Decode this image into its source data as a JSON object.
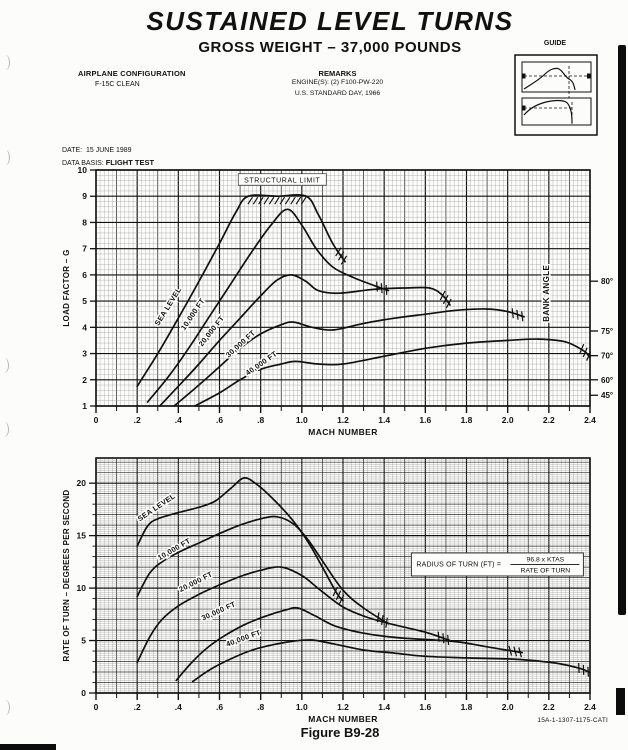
{
  "page": {
    "title": "SUSTAINED LEVEL TURNS",
    "subtitle": "GROSS WEIGHT – 37,000 POUNDS",
    "guide": {
      "label": "GUIDE"
    },
    "airplane_configuration": {
      "heading": "AIRPLANE CONFIGURATION",
      "value": "F-15C CLEAN"
    },
    "remarks": {
      "heading": "REMARKS",
      "lines": [
        "ENGINE(S): (2) F100-PW-220",
        "U.S. STANDARD DAY, 1966"
      ]
    },
    "date": {
      "label": "DATE:",
      "value": "15 JUNE 1989"
    },
    "data_basis": {
      "label": "DATA BASIS:",
      "value": "FLIGHT TEST"
    },
    "figure_caption": "Figure B9-28",
    "doc_number": "15A-1-1307-1175-CATI",
    "colors": {
      "ink": "#111111",
      "paper": "#fcfcfa"
    }
  },
  "chart_data": [
    {
      "type": "line",
      "name": "load-factor-chart",
      "xlabel": "MACH NUMBER",
      "ylabel": "LOAD FACTOR – G",
      "xlim": [
        0,
        2.4
      ],
      "ylim": [
        1,
        10
      ],
      "x_tick_labels": [
        "0",
        ".2",
        ".4",
        ".6",
        ".8",
        "1.0",
        "1.2",
        "1.4",
        "1.6",
        "1.8",
        "2.0",
        "2.2",
        "2.4"
      ],
      "y_tick_values": [
        1,
        2,
        3,
        4,
        5,
        6,
        7,
        8,
        9,
        10
      ],
      "grid": "on",
      "right_axis": {
        "label": "BANK ANGLE",
        "ticks": [
          {
            "label": "80°",
            "load_factor": 5.76
          },
          {
            "label": "75°",
            "load_factor": 3.86
          },
          {
            "label": "70°",
            "load_factor": 2.92
          },
          {
            "label": "60°",
            "load_factor": 2.0
          },
          {
            "label": "45°",
            "load_factor": 1.41
          }
        ]
      },
      "structural_limit": {
        "label": "STRUCTURAL LIMIT",
        "load_factor": 9,
        "mach_start": 0.76,
        "mach_end": 1.02
      },
      "series": [
        {
          "name": "SEA LEVEL",
          "label": {
            "mach": 0.36,
            "value": 4.75,
            "angle": -58
          },
          "points": [
            [
              0.2,
              1.75
            ],
            [
              0.3,
              3.0
            ],
            [
              0.4,
              4.35
            ],
            [
              0.5,
              5.75
            ],
            [
              0.6,
              7.2
            ],
            [
              0.68,
              8.4
            ],
            [
              0.74,
              9.0
            ],
            [
              0.88,
              9.0
            ],
            [
              1.02,
              9.0
            ],
            [
              1.08,
              8.3
            ],
            [
              1.15,
              7.2
            ],
            [
              1.21,
              6.5
            ]
          ]
        },
        {
          "name": "10,000 FT",
          "label": {
            "mach": 0.48,
            "value": 4.45,
            "angle": -56
          },
          "points": [
            [
              0.25,
              1.15
            ],
            [
              0.35,
              2.1
            ],
            [
              0.45,
              3.2
            ],
            [
              0.55,
              4.4
            ],
            [
              0.65,
              5.6
            ],
            [
              0.75,
              6.8
            ],
            [
              0.85,
              7.9
            ],
            [
              0.93,
              8.5
            ],
            [
              1.0,
              7.9
            ],
            [
              1.07,
              7.0
            ],
            [
              1.15,
              6.3
            ],
            [
              1.25,
              5.9
            ],
            [
              1.35,
              5.6
            ],
            [
              1.42,
              5.4
            ]
          ]
        },
        {
          "name": "20,000 FT",
          "label": {
            "mach": 0.57,
            "value": 3.8,
            "angle": -52
          },
          "points": [
            [
              0.31,
              1.0
            ],
            [
              0.4,
              1.75
            ],
            [
              0.5,
              2.6
            ],
            [
              0.6,
              3.5
            ],
            [
              0.7,
              4.35
            ],
            [
              0.8,
              5.2
            ],
            [
              0.88,
              5.8
            ],
            [
              0.95,
              6.0
            ],
            [
              1.02,
              5.75
            ],
            [
              1.08,
              5.4
            ],
            [
              1.18,
              5.3
            ],
            [
              1.35,
              5.45
            ],
            [
              1.5,
              5.5
            ],
            [
              1.62,
              5.5
            ],
            [
              1.68,
              5.25
            ],
            [
              1.72,
              4.85
            ]
          ]
        },
        {
          "name": "30,000 FT",
          "label": {
            "mach": 0.71,
            "value": 3.3,
            "angle": -42
          },
          "points": [
            [
              0.38,
              1.0
            ],
            [
              0.5,
              1.8
            ],
            [
              0.6,
              2.5
            ],
            [
              0.7,
              3.2
            ],
            [
              0.8,
              3.75
            ],
            [
              0.9,
              4.1
            ],
            [
              0.96,
              4.2
            ],
            [
              1.05,
              4.0
            ],
            [
              1.15,
              3.9
            ],
            [
              1.3,
              4.15
            ],
            [
              1.45,
              4.35
            ],
            [
              1.6,
              4.5
            ],
            [
              1.75,
              4.65
            ],
            [
              1.9,
              4.7
            ],
            [
              2.0,
              4.6
            ],
            [
              2.08,
              4.4
            ]
          ]
        },
        {
          "name": "40,000 FT",
          "label": {
            "mach": 0.81,
            "value": 2.55,
            "angle": -35
          },
          "points": [
            [
              0.48,
              1.0
            ],
            [
              0.6,
              1.5
            ],
            [
              0.7,
              2.0
            ],
            [
              0.8,
              2.4
            ],
            [
              0.9,
              2.6
            ],
            [
              0.97,
              2.7
            ],
            [
              1.08,
              2.6
            ],
            [
              1.2,
              2.6
            ],
            [
              1.4,
              2.9
            ],
            [
              1.6,
              3.2
            ],
            [
              1.8,
              3.4
            ],
            [
              2.0,
              3.5
            ],
            [
              2.15,
              3.55
            ],
            [
              2.28,
              3.45
            ],
            [
              2.37,
              3.1
            ],
            [
              2.4,
              2.85
            ]
          ]
        }
      ]
    },
    {
      "type": "line",
      "name": "turn-rate-chart",
      "xlabel": "MACH NUMBER",
      "ylabel": "RATE OF TURN – DEGREES PER SECOND",
      "xlim": [
        0,
        2.4
      ],
      "ylim": [
        0,
        22.4
      ],
      "x_tick_labels": [
        "0",
        ".2",
        ".4",
        ".6",
        ".8",
        "1.0",
        "1.2",
        "1.4",
        "1.6",
        "1.8",
        "2.0",
        "2.2",
        "2.4"
      ],
      "y_tick_values": [
        0,
        5,
        10,
        15,
        20
      ],
      "grid": "on",
      "formula": {
        "lhs": "RADIUS OF TURN (FT) =",
        "numerator": "96.8 x KTAS",
        "denominator": "RATE OF TURN",
        "mach": 1.95,
        "value": 12.3
      },
      "series": [
        {
          "name": "SEA LEVEL",
          "label": {
            "mach": 0.3,
            "value": 17.5,
            "angle": -34
          },
          "points": [
            [
              0.2,
              14.0
            ],
            [
              0.25,
              15.9
            ],
            [
              0.3,
              16.6
            ],
            [
              0.4,
              17.2
            ],
            [
              0.5,
              17.7
            ],
            [
              0.58,
              18.3
            ],
            [
              0.66,
              19.6
            ],
            [
              0.72,
              20.5
            ],
            [
              0.78,
              19.9
            ],
            [
              0.86,
              18.5
            ],
            [
              0.95,
              16.6
            ],
            [
              1.03,
              14.4
            ],
            [
              1.1,
              12.0
            ],
            [
              1.17,
              9.5
            ],
            [
              1.2,
              8.8
            ]
          ]
        },
        {
          "name": "10,000 FT",
          "label": {
            "mach": 0.385,
            "value": 13.5,
            "angle": -30
          },
          "points": [
            [
              0.2,
              9.2
            ],
            [
              0.26,
              11.4
            ],
            [
              0.32,
              12.5
            ],
            [
              0.4,
              13.4
            ],
            [
              0.5,
              14.3
            ],
            [
              0.6,
              15.2
            ],
            [
              0.7,
              16.0
            ],
            [
              0.8,
              16.6
            ],
            [
              0.88,
              16.8
            ],
            [
              0.96,
              16.1
            ],
            [
              1.03,
              14.6
            ],
            [
              1.1,
              12.6
            ],
            [
              1.2,
              9.8
            ],
            [
              1.3,
              8.1
            ],
            [
              1.42,
              6.6
            ]
          ]
        },
        {
          "name": "20,000 FT",
          "label": {
            "mach": 0.49,
            "value": 10.4,
            "angle": -27
          },
          "points": [
            [
              0.2,
              2.9
            ],
            [
              0.26,
              5.3
            ],
            [
              0.32,
              7.0
            ],
            [
              0.4,
              8.3
            ],
            [
              0.5,
              9.4
            ],
            [
              0.6,
              10.3
            ],
            [
              0.7,
              11.1
            ],
            [
              0.8,
              11.7
            ],
            [
              0.9,
              12.0
            ],
            [
              1.0,
              11.2
            ],
            [
              1.09,
              9.8
            ],
            [
              1.2,
              8.2
            ],
            [
              1.32,
              7.2
            ],
            [
              1.45,
              6.5
            ],
            [
              1.6,
              5.8
            ],
            [
              1.72,
              5.0
            ]
          ]
        },
        {
          "name": "30,000 FT",
          "label": {
            "mach": 0.6,
            "value": 7.6,
            "angle": -24
          },
          "points": [
            [
              0.39,
              1.2
            ],
            [
              0.46,
              2.8
            ],
            [
              0.54,
              4.3
            ],
            [
              0.62,
              5.4
            ],
            [
              0.72,
              6.5
            ],
            [
              0.82,
              7.3
            ],
            [
              0.92,
              7.9
            ],
            [
              0.98,
              8.1
            ],
            [
              1.06,
              7.4
            ],
            [
              1.16,
              6.4
            ],
            [
              1.3,
              5.7
            ],
            [
              1.45,
              5.3
            ],
            [
              1.6,
              5.1
            ],
            [
              1.75,
              4.9
            ],
            [
              1.9,
              4.4
            ],
            [
              2.07,
              3.85
            ]
          ]
        },
        {
          "name": "40,000 FT",
          "label": {
            "mach": 0.72,
            "value": 5.0,
            "angle": -20
          },
          "points": [
            [
              0.47,
              1.1
            ],
            [
              0.56,
              2.3
            ],
            [
              0.66,
              3.3
            ],
            [
              0.76,
              4.1
            ],
            [
              0.86,
              4.6
            ],
            [
              0.96,
              4.95
            ],
            [
              1.05,
              5.05
            ],
            [
              1.15,
              4.7
            ],
            [
              1.3,
              4.1
            ],
            [
              1.45,
              3.8
            ],
            [
              1.6,
              3.5
            ],
            [
              1.8,
              3.35
            ],
            [
              2.0,
              3.25
            ],
            [
              2.12,
              3.1
            ],
            [
              2.25,
              2.8
            ],
            [
              2.35,
              2.35
            ],
            [
              2.4,
              1.95
            ]
          ]
        }
      ]
    }
  ]
}
